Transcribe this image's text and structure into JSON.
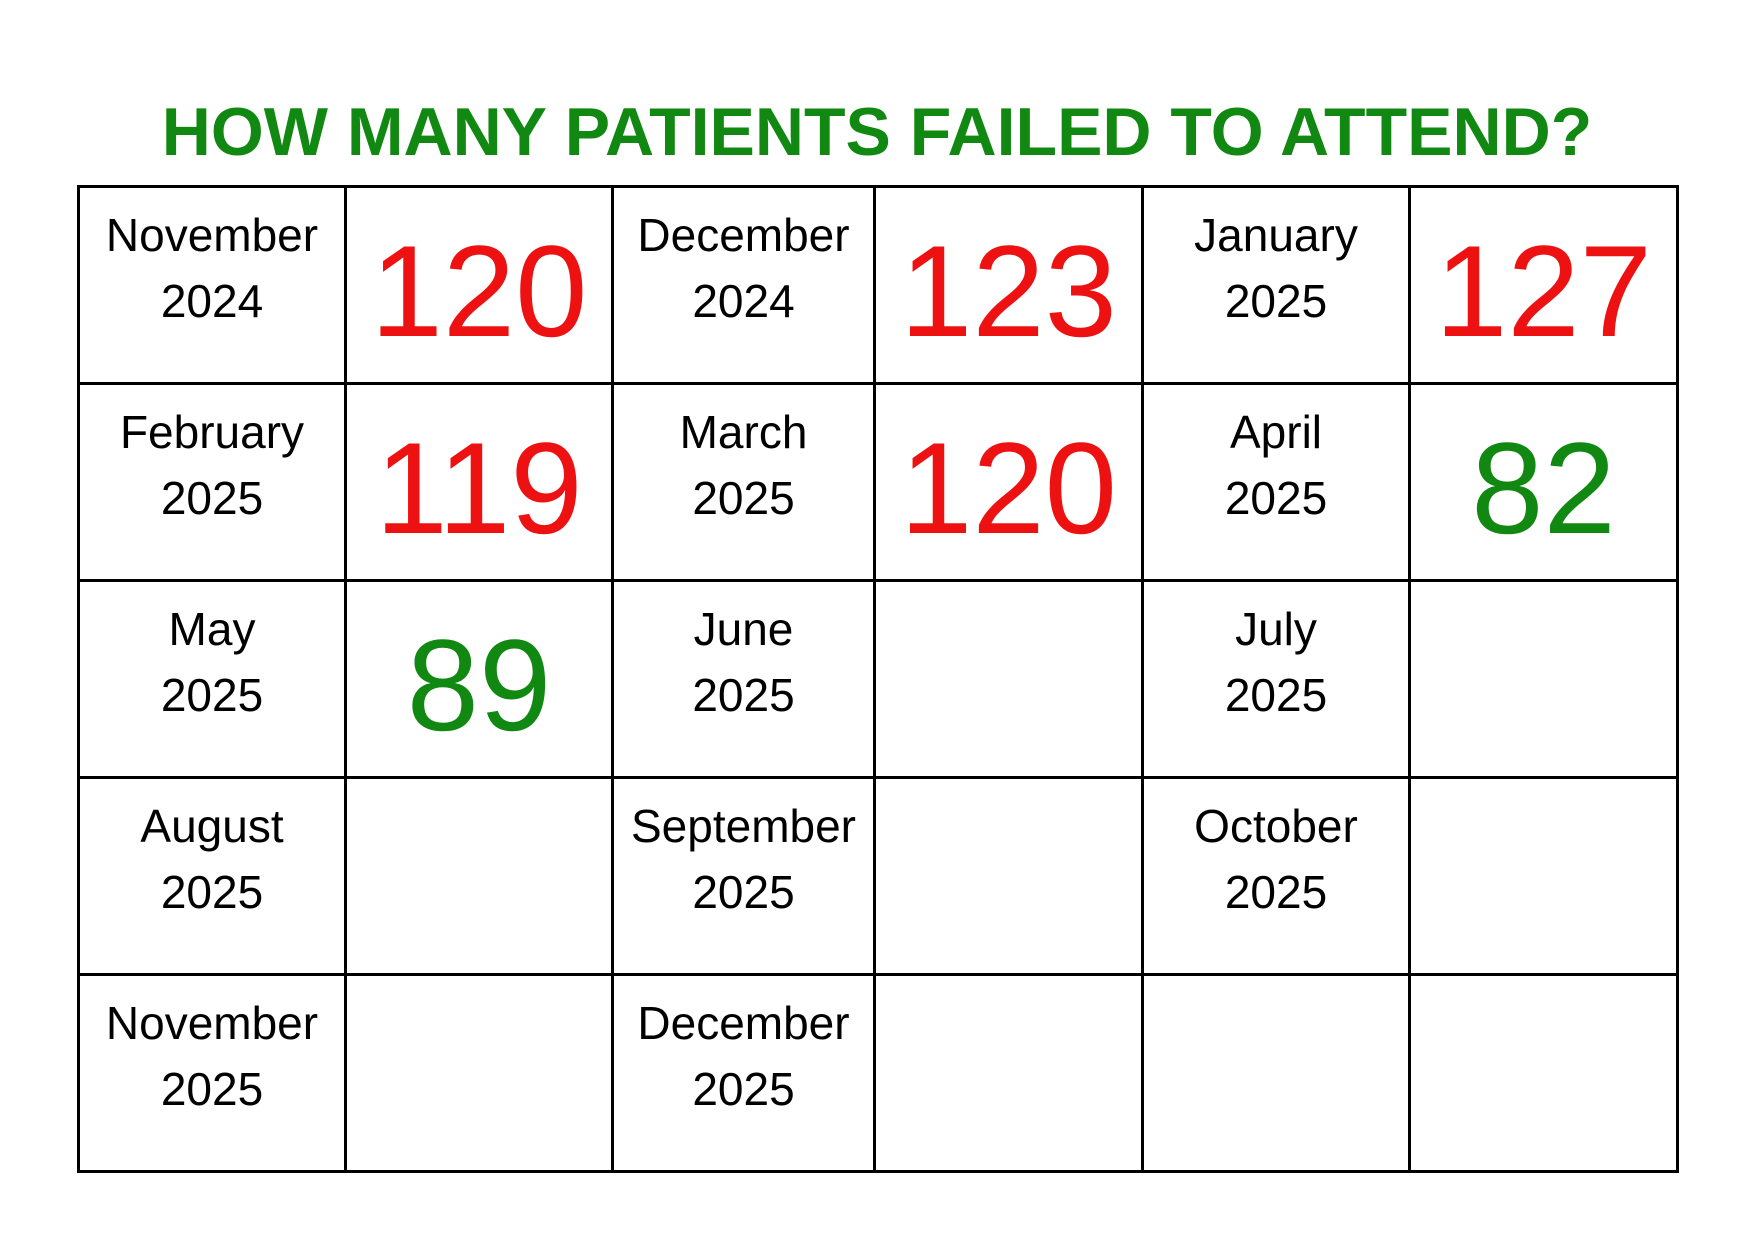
{
  "title": "HOW MANY PATIENTS FAILED TO ATTEND?",
  "colors": {
    "title": "#118811",
    "high": "#ee1111",
    "low": "#118811"
  },
  "rows": [
    [
      {
        "month": "November",
        "year": "2024",
        "value": "120",
        "status": "high"
      },
      {
        "month": "December",
        "year": "2024",
        "value": "123",
        "status": "high"
      },
      {
        "month": "January",
        "year": "2025",
        "value": "127",
        "status": "high"
      }
    ],
    [
      {
        "month": "February",
        "year": "2025",
        "value": "119",
        "status": "high"
      },
      {
        "month": "March",
        "year": "2025",
        "value": "120",
        "status": "high"
      },
      {
        "month": "April",
        "year": "2025",
        "value": "82",
        "status": "low"
      }
    ],
    [
      {
        "month": "May",
        "year": "2025",
        "value": "89",
        "status": "low"
      },
      {
        "month": "June",
        "year": "2025",
        "value": "",
        "status": ""
      },
      {
        "month": "July",
        "year": "2025",
        "value": "",
        "status": ""
      }
    ],
    [
      {
        "month": "August",
        "year": "2025",
        "value": "",
        "status": ""
      },
      {
        "month": "September",
        "year": "2025",
        "value": "",
        "status": ""
      },
      {
        "month": "October",
        "year": "2025",
        "value": "",
        "status": ""
      }
    ],
    [
      {
        "month": "November",
        "year": "2025",
        "value": "",
        "status": ""
      },
      {
        "month": "December",
        "year": "2025",
        "value": "",
        "status": ""
      },
      {
        "month": "",
        "year": "",
        "value": "",
        "status": ""
      }
    ]
  ]
}
